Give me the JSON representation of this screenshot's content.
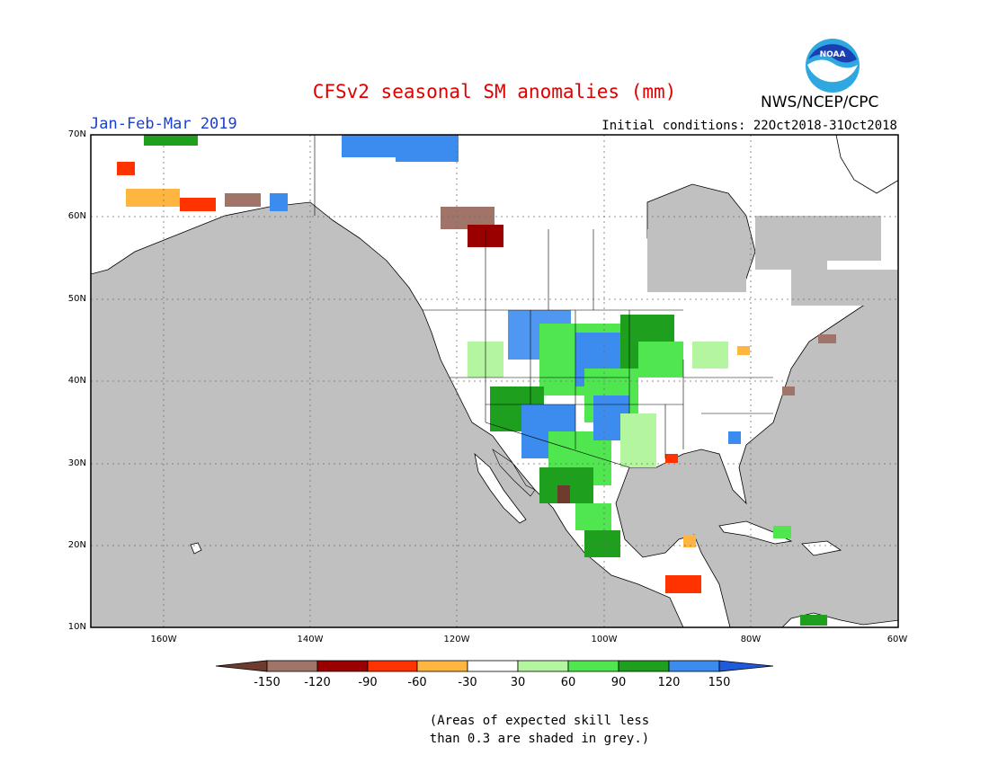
{
  "header": {
    "title": "CFSv2 seasonal SM anomalies (mm)",
    "period": "Jan-Feb-Mar 2019",
    "initial_conditions": "Initial conditions: 22Oct2018-31Oct2018",
    "agency": "NWS/NCEP/CPC",
    "logo_text": "NOAA"
  },
  "map": {
    "lat_labels": [
      "70N",
      "60N",
      "50N",
      "40N",
      "30N",
      "20N",
      "10N"
    ],
    "lon_labels": [
      "160W",
      "140W",
      "120W",
      "100W",
      "80W",
      "60W"
    ],
    "colors": {
      "ocean_grey": "#c0c0c0",
      "land_white": "#ffffff"
    }
  },
  "colorbar": {
    "labels": [
      "-150",
      "-120",
      "-90",
      "-60",
      "-30",
      "30",
      "60",
      "90",
      "120",
      "150"
    ],
    "colors": [
      "#6f3b2e",
      "#a07468",
      "#9b0000",
      "#ff3300",
      "#ffb640",
      "#ffffff",
      "#b4f5a0",
      "#50e650",
      "#1ea01e",
      "#3c8cf0",
      "#1e5adc"
    ]
  },
  "note": {
    "line1": "(Areas of expected skill less",
    "line2": "than 0.3 are shaded in grey.)"
  }
}
